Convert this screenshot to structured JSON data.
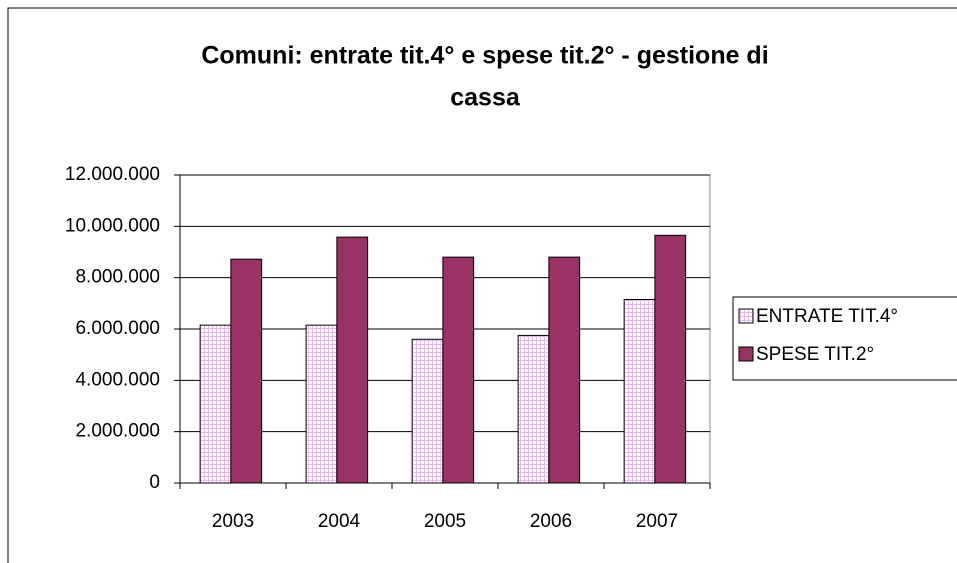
{
  "chart_data": {
    "type": "bar",
    "title": "Comuni: entrate tit.4° e spese tit.2° - gestione di",
    "title_line2": "cassa",
    "categories": [
      "2003",
      "2004",
      "2005",
      "2006",
      "2007"
    ],
    "series": [
      {
        "name": "ENTRATE TIT.4°",
        "color": "#e8b8f0",
        "values": [
          6150000,
          6150000,
          5600000,
          5750000,
          7150000
        ]
      },
      {
        "name": "SPESE TIT.2°",
        "color": "#993366",
        "values": [
          8720000,
          9580000,
          8800000,
          8800000,
          9650000
        ]
      }
    ],
    "ylim": [
      0,
      12000000
    ],
    "yticks": [
      0,
      {
        "value": 2000000,
        "label": "2.000.000"
      },
      {
        "value": 4000000,
        "label": "4.000.000"
      },
      {
        "value": 6000000,
        "label": "6.000.000"
      },
      {
        "value": 8000000,
        "label": "8.000.000"
      },
      {
        "value": 10000000,
        "label": "10.000.000"
      },
      {
        "value": 12000000,
        "label": "12.000.000"
      }
    ],
    "grid": true,
    "legend": "right"
  }
}
